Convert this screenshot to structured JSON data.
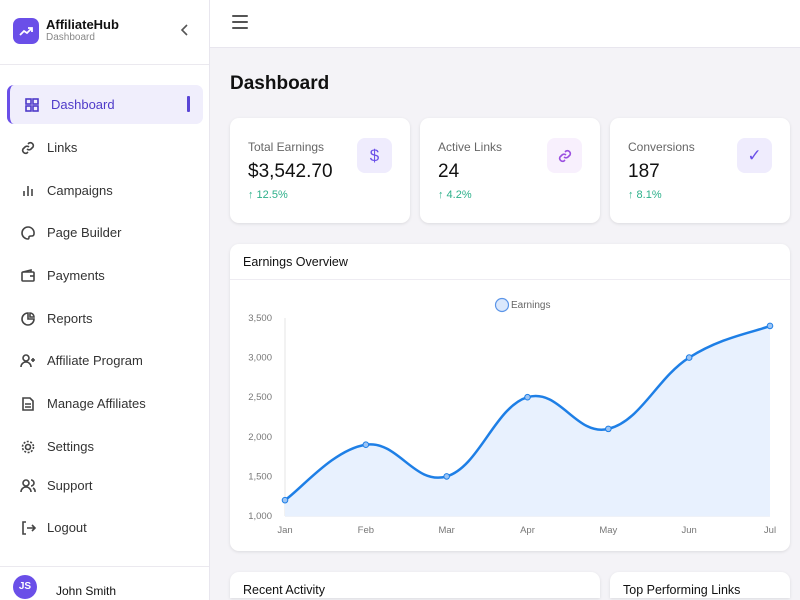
{
  "brand": {
    "name": "AffiliateHub",
    "subtitle": "Dashboard"
  },
  "nav": [
    {
      "label": "Dashboard",
      "icon": "grid-icon",
      "active": true
    },
    {
      "label": "Links",
      "icon": "link-icon"
    },
    {
      "label": "Campaigns",
      "icon": "bar-chart-icon"
    },
    {
      "label": "Page Builder",
      "icon": "palette-icon"
    },
    {
      "label": "Payments",
      "icon": "wallet-icon"
    },
    {
      "label": "Reports",
      "icon": "pie-chart-icon"
    },
    {
      "label": "Affiliate Program",
      "icon": "user-plus-icon"
    },
    {
      "label": "Manage Affiliates",
      "icon": "document-icon"
    },
    {
      "label": "Settings",
      "icon": "gear-icon"
    },
    {
      "label": "Support",
      "icon": "users-icon"
    },
    {
      "label": "Logout",
      "icon": "logout-icon"
    }
  ],
  "user": {
    "initials": "JS",
    "name": "John Smith"
  },
  "page": {
    "title": "Dashboard"
  },
  "stats": [
    {
      "label": "Total Earnings",
      "value": "$3,542.70",
      "change": "↑ 12.5%",
      "icon": "dollar-icon"
    },
    {
      "label": "Active Links",
      "value": "24",
      "change": "↑ 4.2%",
      "icon": "link-icon"
    },
    {
      "label": "Conversions",
      "value": "187",
      "change": "↑ 8.1%",
      "icon": "check-icon"
    }
  ],
  "chart_title": "Earnings Overview",
  "chart_data": {
    "type": "line",
    "title": "Earnings Overview",
    "legend": [
      "Earnings"
    ],
    "legend_position": "top-center",
    "categories": [
      "Jan",
      "Feb",
      "Mar",
      "Apr",
      "May",
      "Jun",
      "Jul"
    ],
    "series": [
      {
        "name": "Earnings",
        "values": [
          1200,
          1900,
          1500,
          2500,
          2100,
          3000,
          3400
        ]
      }
    ],
    "ylim": [
      1000,
      3500
    ],
    "yticks": [
      "1,000",
      "1,500",
      "2,000",
      "2,500",
      "3,000",
      "3,500"
    ],
    "color": "#1e7fe6",
    "fill": "#e8f1fe"
  },
  "bottom": {
    "recent": "Recent Activity",
    "top": "Top Performing Links"
  }
}
